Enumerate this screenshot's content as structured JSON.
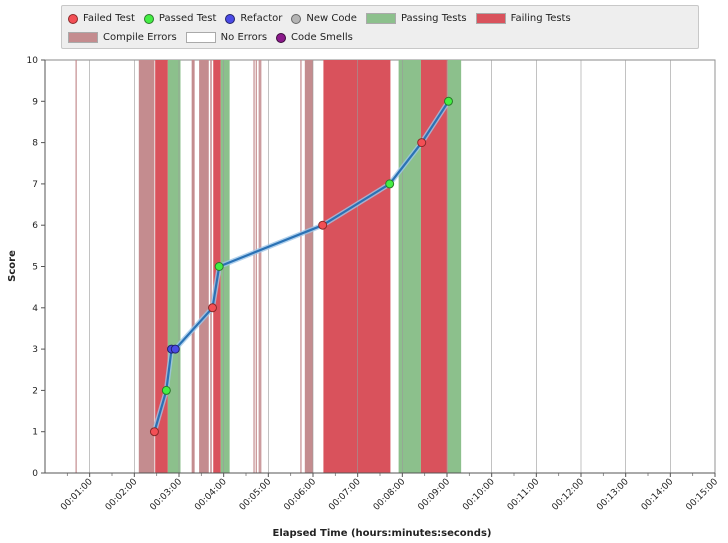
{
  "legend": [
    {
      "label": "Failed Test",
      "kind": "circle",
      "color": "#f34f55",
      "stroke": "#8a2a2a"
    },
    {
      "label": "Passed Test",
      "kind": "circle",
      "color": "#44ee44",
      "stroke": "#2a7a2a"
    },
    {
      "label": "Refactor",
      "kind": "circle",
      "color": "#4a4ae6",
      "stroke": "#22226a"
    },
    {
      "label": "New Code",
      "kind": "circle",
      "color": "#b4b4b4",
      "stroke": "#666666"
    },
    {
      "label": "Passing Tests",
      "kind": "rect",
      "color": "#8cc08c"
    },
    {
      "label": "Failing Tests",
      "kind": "rect",
      "color": "#d9525c"
    },
    {
      "label": "Compile Errors",
      "kind": "rect",
      "color": "#c48c8f"
    },
    {
      "label": "No Errors",
      "kind": "rect",
      "color": "#ffffff"
    },
    {
      "label": "Code Smells",
      "kind": "circle",
      "color": "#8b1a8b",
      "stroke": "#3a0a3a"
    }
  ],
  "chart_data": {
    "type": "scatter",
    "xlabel": "Elapsed Time (hours:minutes:seconds)",
    "ylabel": "Score",
    "xlim": [
      0,
      900
    ],
    "ylim": [
      0,
      10
    ],
    "x_ticks": [
      {
        "value": 60,
        "label": "00:01:00"
      },
      {
        "value": 120,
        "label": "00:02:00"
      },
      {
        "value": 180,
        "label": "00:03:00"
      },
      {
        "value": 240,
        "label": "00:04:00"
      },
      {
        "value": 300,
        "label": "00:05:00"
      },
      {
        "value": 360,
        "label": "00:06:00"
      },
      {
        "value": 420,
        "label": "00:07:00"
      },
      {
        "value": 480,
        "label": "00:08:00"
      },
      {
        "value": 540,
        "label": "00:09:00"
      },
      {
        "value": 600,
        "label": "00:10:00"
      },
      {
        "value": 660,
        "label": "00:11:00"
      },
      {
        "value": 720,
        "label": "00:12:00"
      },
      {
        "value": 780,
        "label": "00:13:00"
      },
      {
        "value": 840,
        "label": "00:14:00"
      },
      {
        "value": 900,
        "label": "00:15:00"
      }
    ],
    "y_ticks": [
      0,
      1,
      2,
      3,
      4,
      5,
      6,
      7,
      8,
      9,
      10
    ],
    "bands": [
      {
        "start": 41,
        "end": 42,
        "state": "Compile Errors"
      },
      {
        "start": 126,
        "end": 147,
        "state": "Compile Errors"
      },
      {
        "start": 148,
        "end": 165,
        "state": "Failing Tests"
      },
      {
        "start": 165,
        "end": 182,
        "state": "Passing Tests"
      },
      {
        "start": 197,
        "end": 201,
        "state": "Compile Errors"
      },
      {
        "start": 207,
        "end": 220,
        "state": "Compile Errors"
      },
      {
        "start": 222,
        "end": 224,
        "state": "Compile Errors"
      },
      {
        "start": 226,
        "end": 236,
        "state": "Failing Tests"
      },
      {
        "start": 236,
        "end": 248,
        "state": "Passing Tests"
      },
      {
        "start": 280,
        "end": 281,
        "state": "Compile Errors"
      },
      {
        "start": 283,
        "end": 284,
        "state": "Compile Errors"
      },
      {
        "start": 287,
        "end": 288,
        "state": "Compile Errors"
      },
      {
        "start": 289,
        "end": 290,
        "state": "Compile Errors"
      },
      {
        "start": 343,
        "end": 344,
        "state": "Compile Errors"
      },
      {
        "start": 349,
        "end": 360,
        "state": "Compile Errors"
      },
      {
        "start": 374,
        "end": 464,
        "state": "Failing Tests"
      },
      {
        "start": 475,
        "end": 505,
        "state": "Passing Tests"
      },
      {
        "start": 505,
        "end": 541,
        "state": "Failing Tests"
      },
      {
        "start": 541,
        "end": 559,
        "state": "Passing Tests"
      }
    ],
    "series": [
      {
        "points": [
          {
            "x": 147,
            "y": 1,
            "type": "Failed Test"
          },
          {
            "x": 163,
            "y": 2,
            "type": "Passed Test"
          },
          {
            "x": 170,
            "y": 3,
            "type": "Refactor"
          },
          {
            "x": 175,
            "y": 3,
            "type": "Refactor"
          },
          {
            "x": 225,
            "y": 4,
            "type": "Failed Test"
          },
          {
            "x": 234,
            "y": 5,
            "type": "Passed Test"
          },
          {
            "x": 373,
            "y": 6,
            "type": "Failed Test"
          },
          {
            "x": 463,
            "y": 7,
            "type": "Passed Test"
          },
          {
            "x": 506,
            "y": 8,
            "type": "Failed Test"
          },
          {
            "x": 542,
            "y": 9,
            "type": "Passed Test"
          }
        ]
      }
    ]
  }
}
